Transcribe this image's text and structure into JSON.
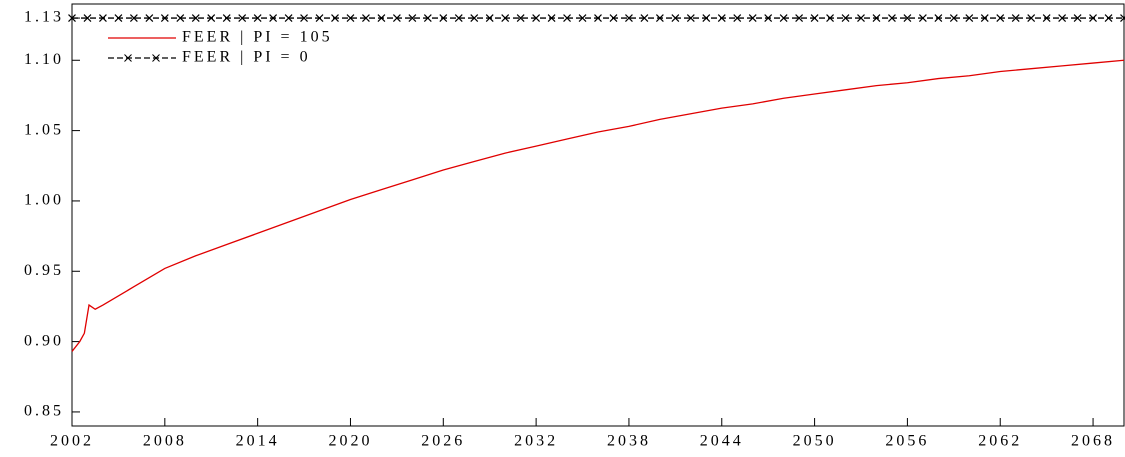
{
  "chart_data": {
    "type": "line",
    "xlim": [
      2002,
      2070
    ],
    "xticks": [
      2002,
      2008,
      2014,
      2020,
      2026,
      2032,
      2038,
      2044,
      2050,
      2056,
      2062,
      2068
    ],
    "ylim": [
      0.84,
      1.14
    ],
    "yticks": [
      0.85,
      {
        "value": 0.9,
        "label": "0.90"
      },
      0.95,
      {
        "value": 1,
        "label": "1.00"
      },
      1.05,
      {
        "value": 1.1,
        "label": "1.10"
      },
      1.13
    ],
    "legend": "upper left",
    "series": [
      {
        "name": "FEER | PI = 105",
        "color": "#e00000",
        "marker": "none",
        "x": [
          2002,
          2002.5,
          2002.8,
          2003.1,
          2003.5,
          2004,
          2006,
          2008,
          2010,
          2012,
          2014,
          2016,
          2018,
          2020,
          2022,
          2024,
          2026,
          2028,
          2030,
          2032,
          2034,
          2036,
          2038,
          2040,
          2042,
          2044,
          2046,
          2048,
          2050,
          2052,
          2054,
          2056,
          2058,
          2060,
          2062,
          2064,
          2066,
          2068,
          2070
        ],
        "values": [
          0.893,
          0.9,
          0.906,
          0.926,
          0.923,
          0.926,
          0.939,
          0.952,
          0.961,
          0.969,
          0.977,
          0.985,
          0.993,
          1.001,
          1.008,
          1.015,
          1.022,
          1.028,
          1.034,
          1.039,
          1.044,
          1.049,
          1.053,
          1.058,
          1.062,
          1.066,
          1.069,
          1.073,
          1.076,
          1.079,
          1.082,
          1.084,
          1.087,
          1.089,
          1.092,
          1.094,
          1.096,
          1.098,
          1.1
        ]
      },
      {
        "name": "FEER | PI = 0",
        "color": "#000000",
        "marker": "x",
        "x": [
          2002,
          2003,
          2004,
          2005,
          2006,
          2007,
          2008,
          2009,
          2010,
          2011,
          2012,
          2013,
          2014,
          2015,
          2016,
          2017,
          2018,
          2019,
          2020,
          2021,
          2022,
          2023,
          2024,
          2025,
          2026,
          2027,
          2028,
          2029,
          2030,
          2031,
          2032,
          2033,
          2034,
          2035,
          2036,
          2037,
          2038,
          2039,
          2040,
          2041,
          2042,
          2043,
          2044,
          2045,
          2046,
          2047,
          2048,
          2049,
          2050,
          2051,
          2052,
          2053,
          2054,
          2055,
          2056,
          2057,
          2058,
          2059,
          2060,
          2061,
          2062,
          2063,
          2064,
          2065,
          2066,
          2067,
          2068,
          2069,
          2070
        ],
        "values": [
          1.13,
          1.13,
          1.13,
          1.13,
          1.13,
          1.13,
          1.13,
          1.13,
          1.13,
          1.13,
          1.13,
          1.13,
          1.13,
          1.13,
          1.13,
          1.13,
          1.13,
          1.13,
          1.13,
          1.13,
          1.13,
          1.13,
          1.13,
          1.13,
          1.13,
          1.13,
          1.13,
          1.13,
          1.13,
          1.13,
          1.13,
          1.13,
          1.13,
          1.13,
          1.13,
          1.13,
          1.13,
          1.13,
          1.13,
          1.13,
          1.13,
          1.13,
          1.13,
          1.13,
          1.13,
          1.13,
          1.13,
          1.13,
          1.13,
          1.13,
          1.13,
          1.13,
          1.13,
          1.13,
          1.13,
          1.13,
          1.13,
          1.13,
          1.13,
          1.13,
          1.13,
          1.13,
          1.13,
          1.13,
          1.13,
          1.13,
          1.13,
          1.13,
          1.13
        ]
      }
    ]
  }
}
